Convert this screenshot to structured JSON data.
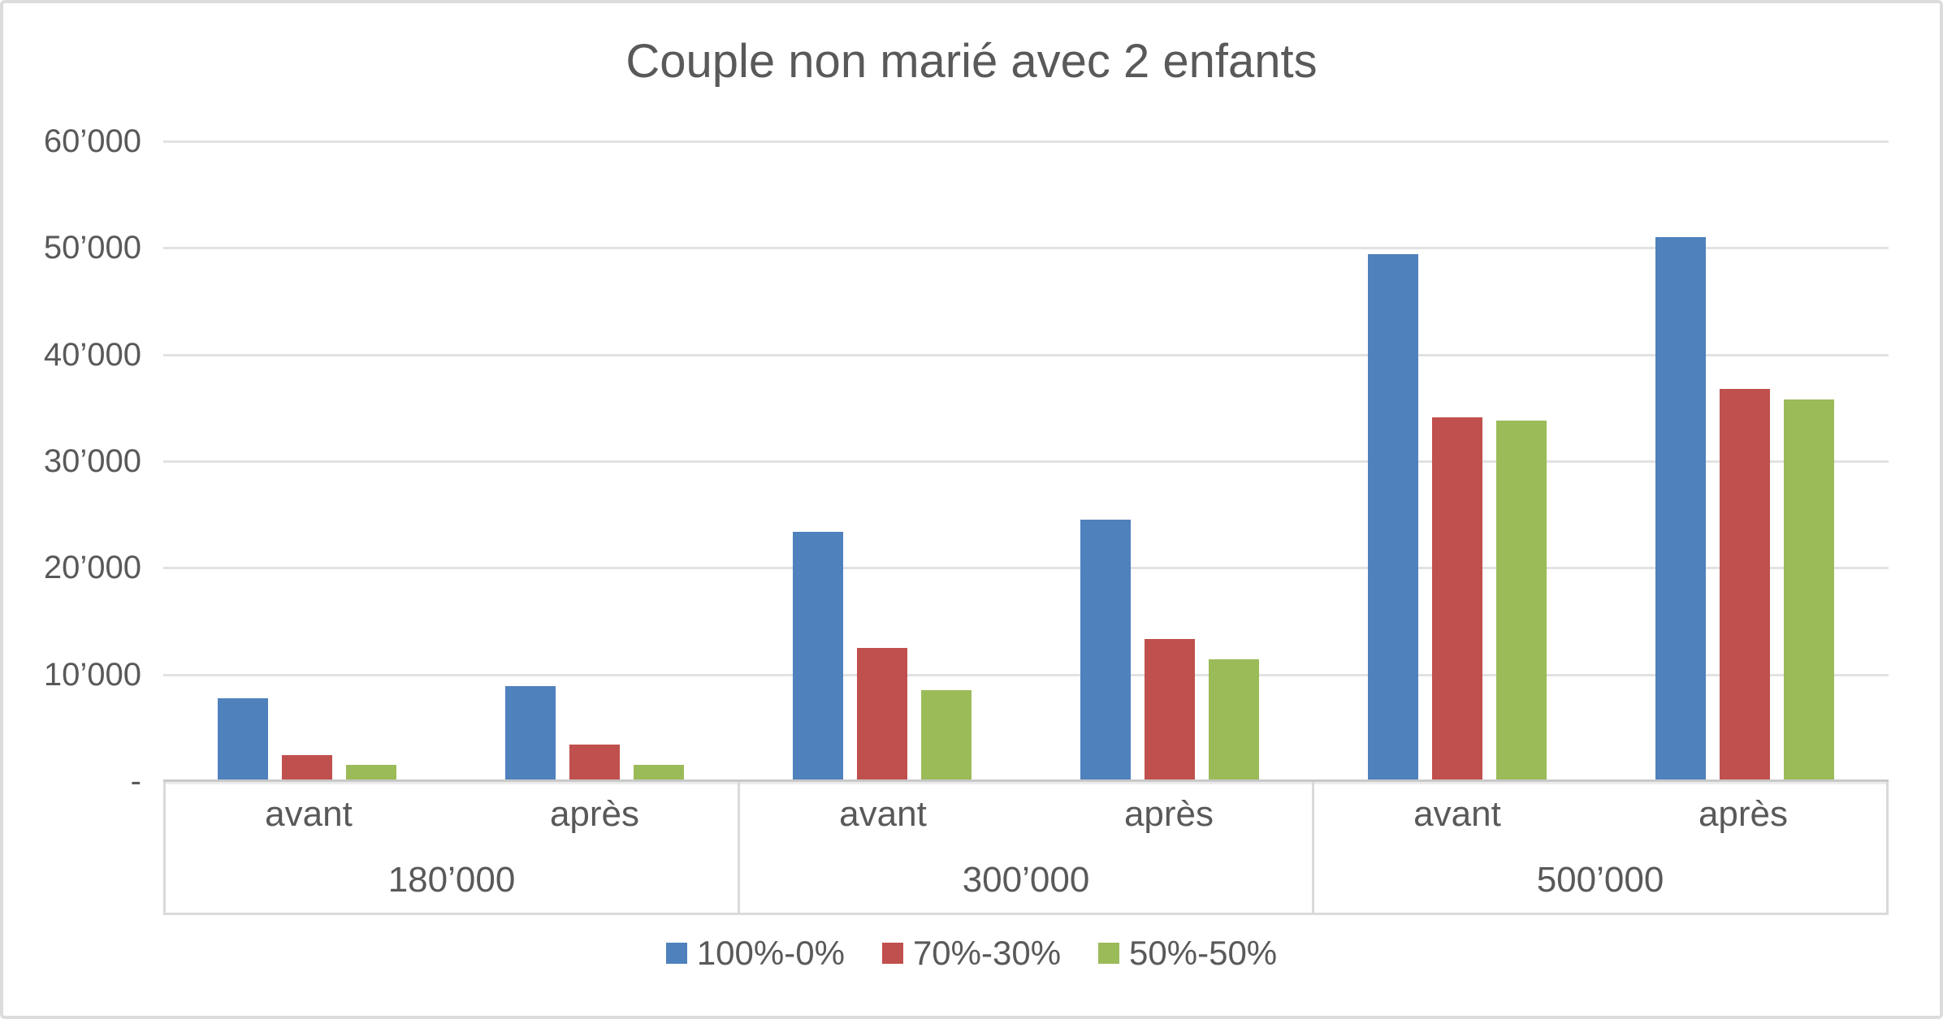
{
  "title": "Couple non marié avec 2 enfants",
  "chart_data": {
    "type": "bar",
    "title": "Couple non marié avec 2 enfants",
    "groups": [
      "180’000",
      "300’000",
      "500’000"
    ],
    "subcategories": [
      "avant",
      "après"
    ],
    "series": [
      {
        "name": "100%-0%",
        "color": "#4F81BD",
        "values": [
          [
            7800,
            8900
          ],
          [
            23400,
            24500
          ],
          [
            49400,
            51000
          ]
        ]
      },
      {
        "name": "70%-30%",
        "color": "#C0504D",
        "values": [
          [
            2400,
            3400
          ],
          [
            12500,
            13300
          ],
          [
            34100,
            36800
          ]
        ]
      },
      {
        "name": "50%-50%",
        "color": "#9BBB59",
        "values": [
          [
            1500,
            1500
          ],
          [
            8500,
            11400
          ],
          [
            33800,
            35800
          ]
        ]
      }
    ],
    "y_axis": {
      "ticks": [
        {
          "label": "60’000",
          "value": 60000
        },
        {
          "label": "50’000",
          "value": 50000
        },
        {
          "label": "40’000",
          "value": 40000
        },
        {
          "label": "30’000",
          "value": 30000
        },
        {
          "label": "20’000",
          "value": 20000
        },
        {
          "label": "10’000",
          "value": 10000
        },
        {
          "label": "-",
          "value": 0
        }
      ],
      "ylim": [
        0,
        60000
      ],
      "grid": true
    },
    "legend_position": "bottom"
  },
  "colors": {
    "grid": "#e2e2e2",
    "axis": "#c9c9c9",
    "text": "#595959",
    "background": "#ffffff"
  }
}
